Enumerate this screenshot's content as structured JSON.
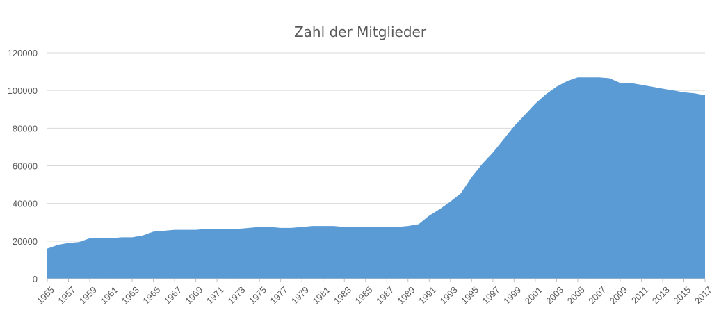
{
  "chart_data": {
    "type": "area",
    "title": "Zahl der Mitglieder",
    "xlabel": "",
    "ylabel": "",
    "ylim": [
      0,
      120000
    ],
    "y_ticks": [
      0,
      20000,
      40000,
      60000,
      80000,
      100000,
      120000
    ],
    "grid": true,
    "legend": "none",
    "color": "#5b9bd5",
    "x_tick_labels": [
      "1955",
      "1957",
      "1959",
      "1961",
      "1963",
      "1965",
      "1967",
      "1969",
      "1971",
      "1973",
      "1975",
      "1977",
      "1979",
      "1981",
      "1983",
      "1985",
      "1987",
      "1989",
      "1991",
      "1993",
      "1995",
      "1997",
      "1999",
      "2001",
      "2003",
      "2005",
      "2007",
      "2009",
      "2011",
      "2013",
      "2015",
      "2017"
    ],
    "x": [
      1955,
      1956,
      1957,
      1958,
      1959,
      1960,
      1961,
      1962,
      1963,
      1964,
      1965,
      1966,
      1967,
      1968,
      1969,
      1970,
      1971,
      1972,
      1973,
      1974,
      1975,
      1976,
      1977,
      1978,
      1979,
      1980,
      1981,
      1982,
      1983,
      1984,
      1985,
      1986,
      1987,
      1988,
      1989,
      1990,
      1991,
      1992,
      1993,
      1994,
      1995,
      1996,
      1997,
      1998,
      1999,
      2000,
      2001,
      2002,
      2003,
      2004,
      2005,
      2006,
      2007,
      2008,
      2009,
      2010,
      2011,
      2012,
      2013,
      2014,
      2015,
      2016,
      2017
    ],
    "values": [
      16000,
      18000,
      19000,
      19500,
      21500,
      21500,
      21500,
      22000,
      22000,
      23000,
      25000,
      25500,
      26000,
      26000,
      26000,
      26500,
      26500,
      26500,
      26500,
      27000,
      27500,
      27500,
      27000,
      27000,
      27500,
      28000,
      28000,
      28000,
      27500,
      27500,
      27500,
      27500,
      27500,
      27500,
      28000,
      29000,
      33500,
      37000,
      41000,
      45500,
      54000,
      61000,
      67000,
      74000,
      81000,
      87000,
      93000,
      98000,
      102000,
      105000,
      107000,
      107000,
      107000,
      106500,
      104000,
      104000,
      103000,
      102000,
      101000,
      100000,
      99000,
      98500,
      97500
    ]
  }
}
